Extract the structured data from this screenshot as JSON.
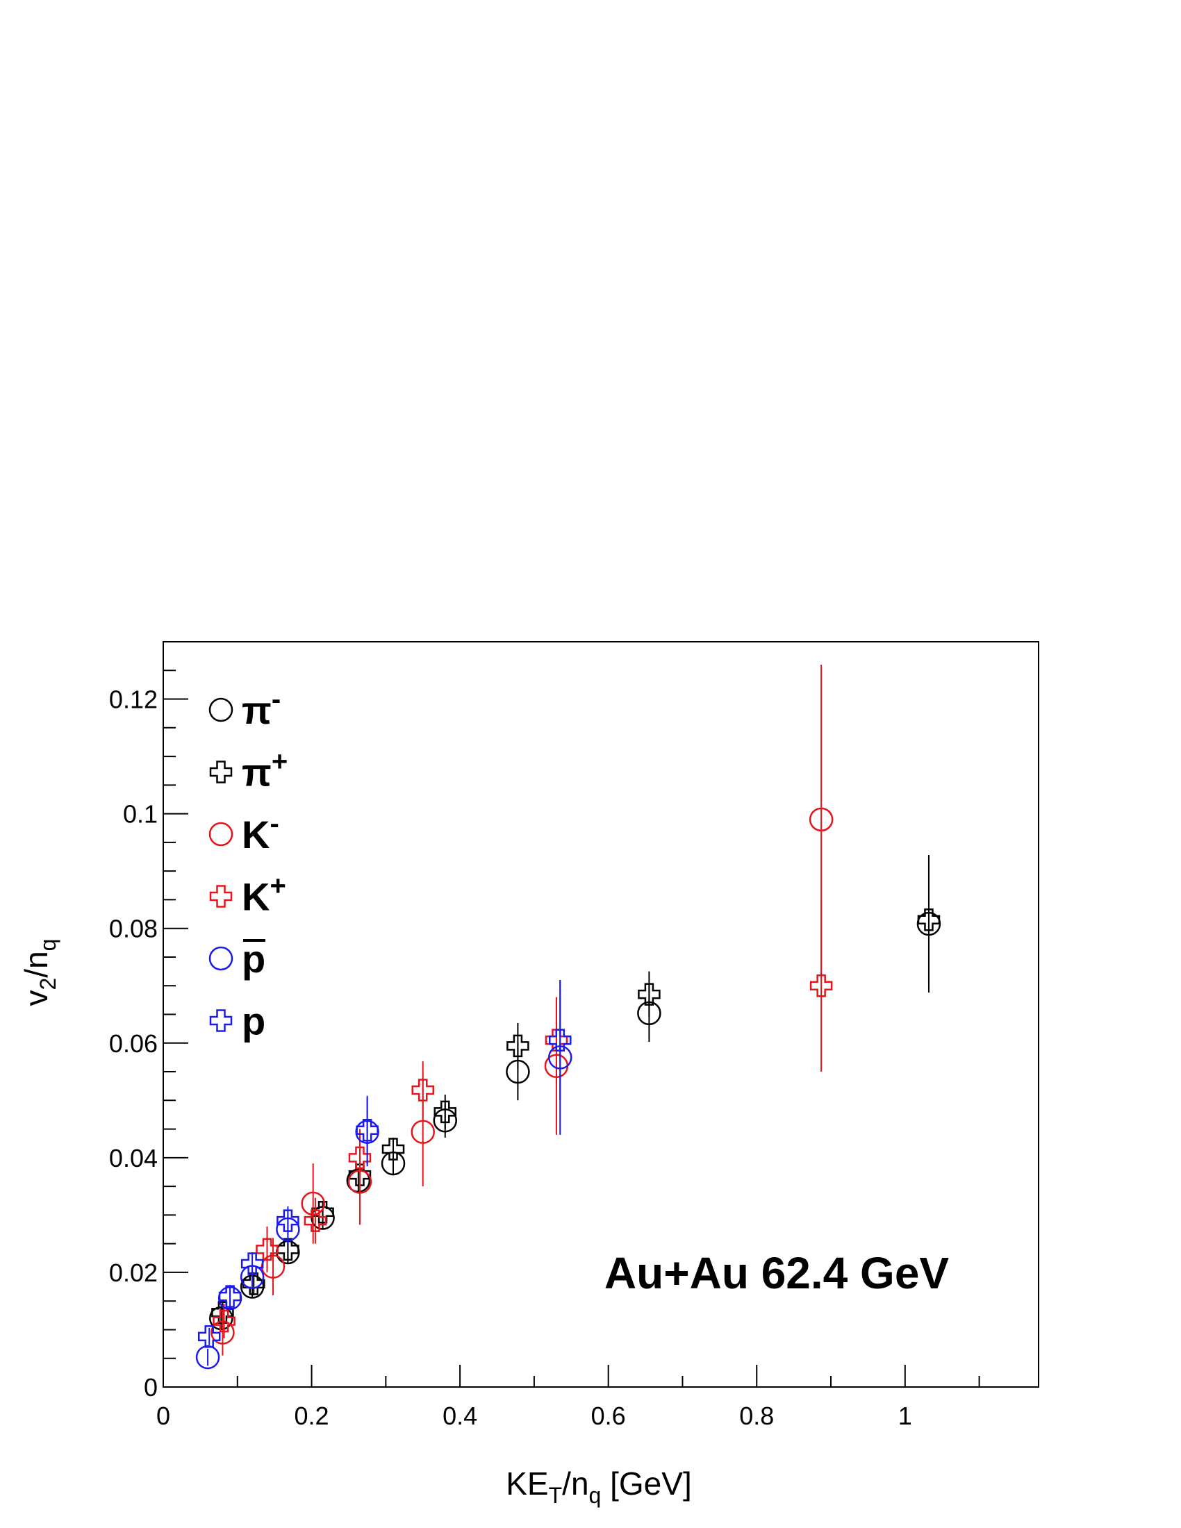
{
  "chart_data": {
    "type": "scatter",
    "title": "",
    "xlabel": {
      "main": "KE",
      "sub1": "T",
      "mid": "/n",
      "sub2": "q",
      "tail": " [GeV]"
    },
    "ylabel": {
      "main": "v",
      "sub1": "2",
      "mid": "/n",
      "sub2": "q"
    },
    "xlim": [
      0,
      1.18
    ],
    "ylim": [
      0,
      0.13
    ],
    "x_ticks": [
      {
        "value": 0,
        "label": "0"
      },
      {
        "value": 0.2,
        "label": "0.2"
      },
      {
        "value": 0.4,
        "label": "0.4"
      },
      {
        "value": 0.6,
        "label": "0.6"
      },
      {
        "value": 0.8,
        "label": "0.8"
      },
      {
        "value": 1.0,
        "label": "1"
      }
    ],
    "y_ticks": [
      {
        "value": 0,
        "label": "0"
      },
      {
        "value": 0.02,
        "label": "0.02"
      },
      {
        "value": 0.04,
        "label": "0.04"
      },
      {
        "value": 0.06,
        "label": "0.06"
      },
      {
        "value": 0.08,
        "label": "0.08"
      },
      {
        "value": 0.1,
        "label": "0.1"
      },
      {
        "value": 0.12,
        "label": "0.12"
      }
    ],
    "annotation": "Au+Au 62.4 GeV",
    "legend_position": "top-left",
    "series": [
      {
        "name": "π",
        "sup": "-",
        "overline": false,
        "marker": "circle",
        "color": "#000000",
        "points": [
          [
            0.078,
            0.012,
            0.002
          ],
          [
            0.12,
            0.0175,
            0.002
          ],
          [
            0.168,
            0.0235,
            0.002
          ],
          [
            0.215,
            0.0295,
            0.002
          ],
          [
            0.263,
            0.036,
            0.002
          ],
          [
            0.31,
            0.039,
            0.002
          ],
          [
            0.38,
            0.0465,
            0.003
          ],
          [
            0.478,
            0.055,
            0.005
          ],
          [
            0.655,
            0.0652,
            0.005
          ],
          [
            1.032,
            0.0808,
            0.012
          ]
        ]
      },
      {
        "name": "π",
        "sup": "+",
        "overline": false,
        "marker": "cross",
        "color": "#000000",
        "points": [
          [
            0.08,
            0.013,
            0.002
          ],
          [
            0.122,
            0.018,
            0.002
          ],
          [
            0.168,
            0.024,
            0.002
          ],
          [
            0.215,
            0.0305,
            0.002
          ],
          [
            0.265,
            0.037,
            0.002
          ],
          [
            0.31,
            0.0415,
            0.002
          ],
          [
            0.38,
            0.048,
            0.003
          ],
          [
            0.478,
            0.0595,
            0.004
          ],
          [
            0.655,
            0.0685,
            0.004
          ],
          [
            1.032,
            0.0815,
            0.011
          ]
        ]
      },
      {
        "name": "K",
        "sup": "-",
        "overline": false,
        "marker": "circle",
        "color": "#e8141c",
        "points": [
          [
            0.08,
            0.0095,
            0.004
          ],
          [
            0.148,
            0.021,
            0.005
          ],
          [
            0.202,
            0.032,
            0.007
          ],
          [
            0.265,
            0.0358,
            0.0075
          ],
          [
            0.35,
            0.0445,
            0.0095
          ],
          [
            0.53,
            0.056,
            0.012
          ],
          [
            0.887,
            0.099,
            0.027
          ]
        ]
      },
      {
        "name": "K",
        "sup": "+",
        "overline": false,
        "marker": "cross",
        "color": "#e8141c",
        "points": [
          [
            0.082,
            0.0115,
            0.003
          ],
          [
            0.14,
            0.024,
            0.004
          ],
          [
            0.205,
            0.029,
            0.004
          ],
          [
            0.265,
            0.04,
            0.005
          ],
          [
            0.35,
            0.0518,
            0.005
          ],
          [
            0.53,
            0.0605,
            0.0075
          ],
          [
            0.887,
            0.07,
            0.015
          ]
        ]
      },
      {
        "name": "p",
        "sup": "",
        "overline": true,
        "marker": "circle",
        "color": "#1a1af0",
        "points": [
          [
            0.06,
            0.0052,
            0.0015
          ],
          [
            0.09,
            0.0155,
            0.002
          ],
          [
            0.12,
            0.0192,
            0.002
          ],
          [
            0.168,
            0.0275,
            0.0025
          ],
          [
            0.275,
            0.0445,
            0.006
          ],
          [
            0.535,
            0.0575,
            0.0135
          ]
        ]
      },
      {
        "name": "p",
        "sup": "",
        "overline": false,
        "marker": "cross",
        "color": "#1a1af0",
        "points": [
          [
            0.062,
            0.0088,
            0.0015
          ],
          [
            0.09,
            0.0158,
            0.002
          ],
          [
            0.12,
            0.0215,
            0.002
          ],
          [
            0.168,
            0.029,
            0.0025
          ],
          [
            0.275,
            0.0448,
            0.006
          ],
          [
            0.535,
            0.0605,
            0.0105
          ]
        ]
      }
    ]
  }
}
